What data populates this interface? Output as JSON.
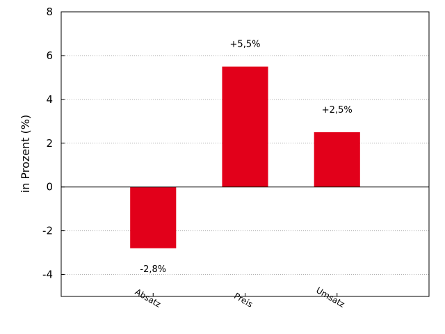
{
  "chart_data": {
    "type": "bar",
    "categories": [
      "Absatz",
      "Preis",
      "Umsatz"
    ],
    "values": [
      -2.8,
      5.5,
      2.5
    ],
    "data_labels": [
      "-2,8%",
      "+5,5%",
      "+2,5%"
    ],
    "title": "",
    "xlabel": "",
    "ylabel": "in Prozent (%)",
    "ylim": [
      -5,
      8
    ],
    "yticks": [
      8,
      6,
      4,
      2,
      0,
      -2,
      -4
    ],
    "ytick_labels": [
      "8",
      "6",
      "4",
      "2",
      "0",
      "-2",
      "-4"
    ],
    "grid": "horizontal dotted",
    "bar_color": "#e2001a",
    "zero_line": true
  }
}
